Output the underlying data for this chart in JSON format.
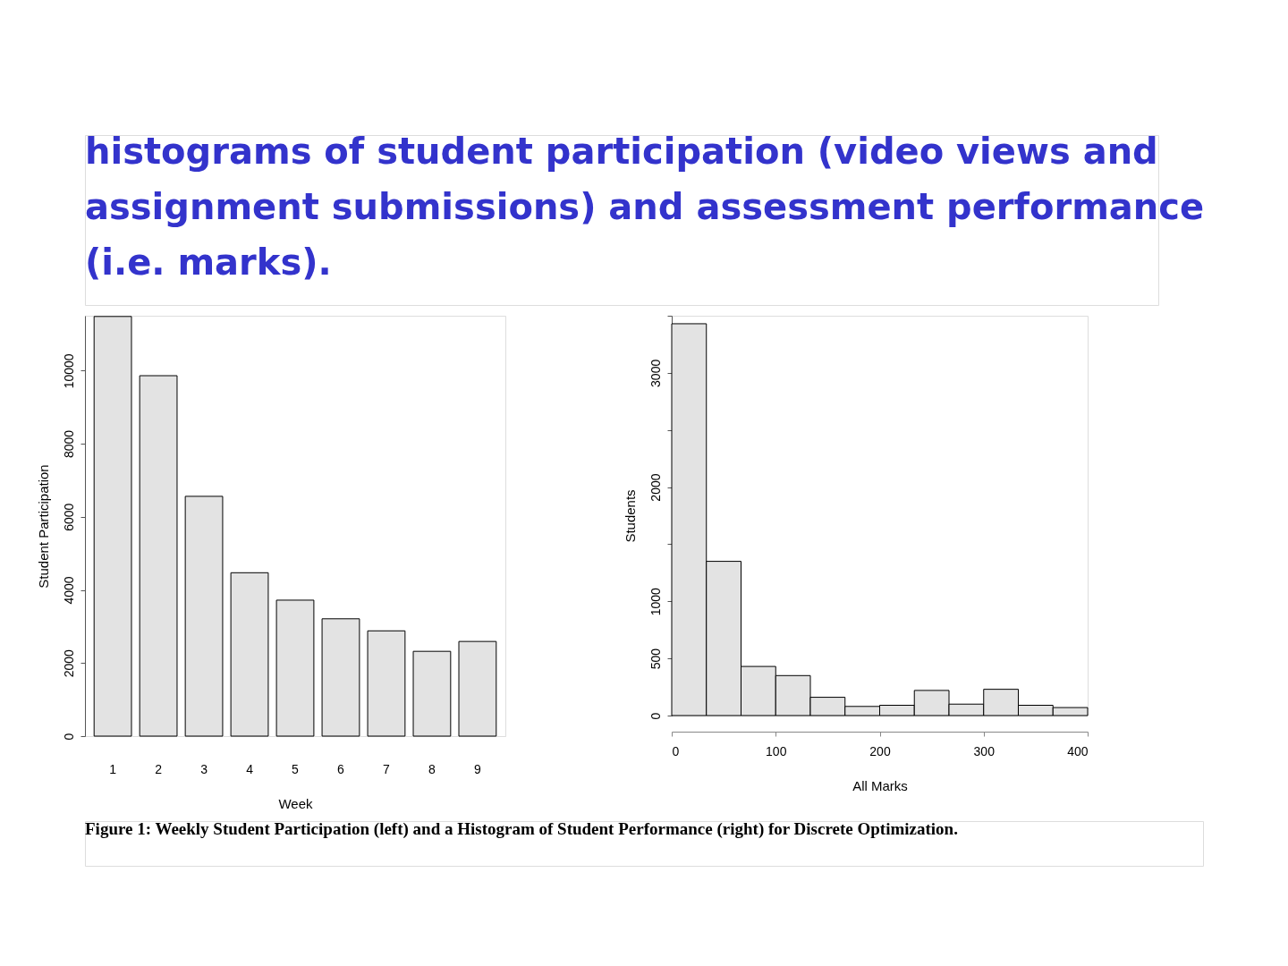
{
  "chart_data": [
    {
      "type": "bar",
      "annotations": [
        "histograms of student participation (video views and assignment submissions) and assessment performance (i.e. marks)."
      ],
      "xlabel": "Week",
      "ylabel": "Student Participation",
      "categories": [
        "1",
        "2",
        "3",
        "4",
        "5",
        "6",
        "7",
        "8",
        "9"
      ],
      "values": [
        11480,
        9860,
        6560,
        4470,
        3720,
        3210,
        2880,
        2320,
        2590
      ],
      "color": "#e3e3e3",
      "ylim": [
        0,
        11500
      ],
      "yticks": [
        0,
        2000,
        4000,
        6000,
        8000,
        10000
      ]
    },
    {
      "type": "histogram",
      "annotations": [
        "Figure 1: Weekly Student Participation (left) and a Histogram of Student Performance (right) for Discrete Optimization."
      ],
      "xlabel": "All Marks",
      "ylabel": "Students",
      "bins": [
        0,
        33.33,
        66.67,
        100,
        133.33,
        166.67,
        200,
        233.33,
        266.67,
        300,
        333.33,
        366.67,
        400
      ],
      "values": [
        3430,
        1350,
        430,
        350,
        160,
        80,
        90,
        220,
        100,
        230,
        90,
        70
      ],
      "color": "#e3e3e3",
      "xlim": [
        0,
        400
      ],
      "xticks": [
        0,
        100,
        200,
        300,
        400
      ],
      "ylim": [
        0,
        3500
      ],
      "yticks": [
        0,
        500,
        1000,
        {
          "value": 1500,
          "label": null
        },
        2000,
        {
          "value": 2500,
          "label": null
        },
        3000,
        {
          "value": 3500,
          "label": null
        }
      ]
    }
  ]
}
